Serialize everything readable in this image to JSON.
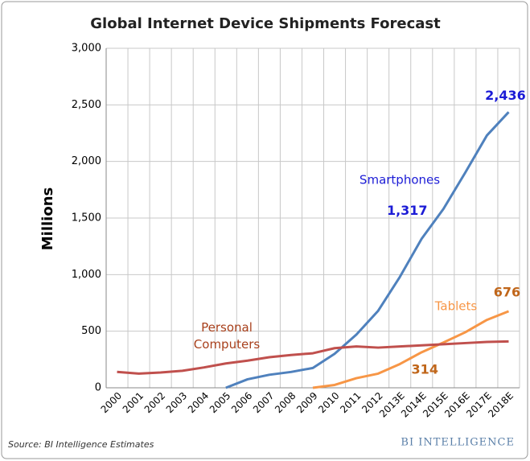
{
  "chart_data": {
    "type": "line",
    "title": "Global Internet Device Shipments Forecast",
    "y_label": "Millions",
    "source": "Source: BI Intelligence Estimates",
    "logo": "BI INTELLIGENCE",
    "categories": [
      "2000",
      "2001",
      "2002",
      "2003",
      "2004",
      "2005",
      "2006",
      "2007",
      "2008",
      "2009",
      "2010",
      "2011",
      "2012",
      "2013E",
      "2014E",
      "2015E",
      "2016E",
      "2017E",
      "2018E"
    ],
    "series": [
      {
        "name": "Smartphones",
        "color": "#4f81bd",
        "label_color": "#1c1cd6",
        "values": [
          null,
          null,
          null,
          null,
          null,
          0,
          75,
          115,
          140,
          175,
          300,
          470,
          680,
          980,
          1317,
          1580,
          1900,
          2230,
          2436
        ],
        "value_labels": [
          null,
          null,
          null,
          null,
          null,
          null,
          null,
          null,
          null,
          null,
          null,
          null,
          null,
          null,
          "1,317",
          null,
          null,
          null,
          "2,436"
        ]
      },
      {
        "name": "Tablets",
        "color": "#f79646",
        "label_color": "#f79646",
        "value_label_color": "#c0661a",
        "values": [
          null,
          null,
          null,
          null,
          null,
          null,
          null,
          null,
          null,
          0,
          25,
          85,
          125,
          210,
          314,
          400,
          490,
          600,
          676
        ],
        "value_labels": [
          null,
          null,
          null,
          null,
          null,
          null,
          null,
          null,
          null,
          null,
          null,
          null,
          null,
          null,
          "314",
          null,
          null,
          null,
          "676"
        ]
      },
      {
        "name": "Personal Computers",
        "color": "#c0504d",
        "label_color": "#a8401c",
        "values": [
          140,
          125,
          135,
          150,
          180,
          215,
          240,
          270,
          290,
          305,
          350,
          365,
          355,
          365,
          375,
          385,
          395,
          405,
          410
        ]
      }
    ],
    "ylim": [
      0,
      3000
    ],
    "yticks": [
      0,
      500,
      {
        "value": 1000,
        "label": "1,000"
      },
      {
        "value": 1500,
        "label": "1,500"
      },
      {
        "value": 2000,
        "label": "2,000"
      },
      {
        "value": 2500,
        "label": "2,500"
      },
      {
        "value": 3000,
        "label": "3,000"
      }
    ],
    "grid": true
  }
}
